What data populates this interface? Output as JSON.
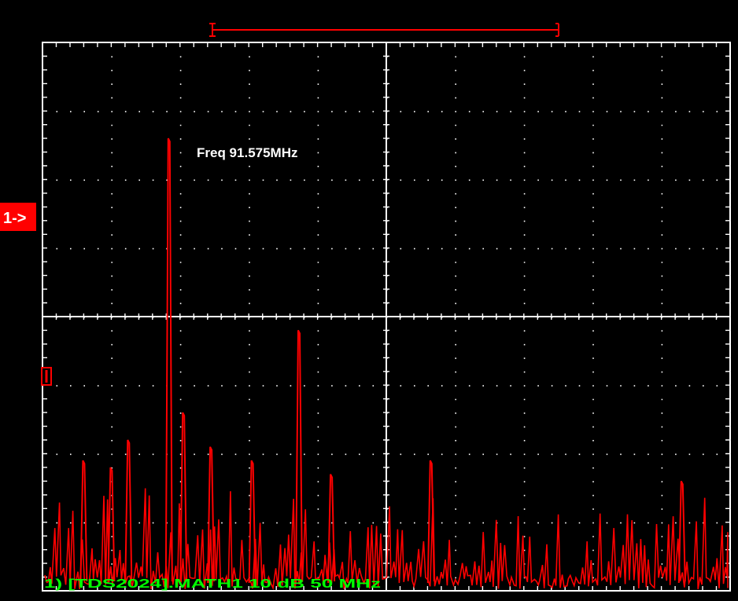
{
  "marker_label": "1->",
  "measurement": "Freq 91.575MHz",
  "status_line": "1) [TDS2024].MATH1  10  dB   50 MHz",
  "colors": {
    "background": "#000000",
    "grid": "#ffffff",
    "trace": "#ff0000",
    "marker_bg": "#ff0000",
    "status_text": "#00ff00",
    "measurement_text": "#ffffff"
  },
  "chart_data": {
    "type": "line",
    "grid": true,
    "divisions": {
      "x": 10,
      "y": 8
    },
    "scale": {
      "vertical": "10 dB/div",
      "horizontal": "50 MHz/div"
    },
    "series": [
      {
        "name": "MATH1",
        "peaks": [
          {
            "x_div": 1.84,
            "y_div": 6.6
          },
          {
            "x_div": 3.73,
            "y_div": 3.8
          },
          {
            "x_div": 2.05,
            "y_div": 2.6
          },
          {
            "x_div": 1.25,
            "y_div": 2.2
          },
          {
            "x_div": 2.45,
            "y_div": 2.1
          },
          {
            "x_div": 0.6,
            "y_div": 1.9
          },
          {
            "x_div": 3.05,
            "y_div": 1.9
          },
          {
            "x_div": 5.65,
            "y_div": 1.9
          },
          {
            "x_div": 1.0,
            "y_div": 1.8
          },
          {
            "x_div": 4.2,
            "y_div": 1.7
          },
          {
            "x_div": 9.3,
            "y_div": 1.6
          }
        ]
      }
    ]
  }
}
